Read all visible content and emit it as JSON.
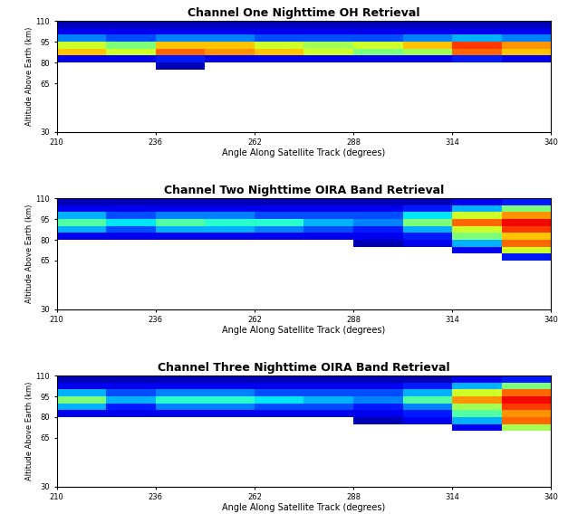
{
  "chart_data": [
    {
      "type": "heatmap",
      "title": "Channel One Nighttime OH Retrieval",
      "x_label": "Angle Along Satellite Track (degrees)",
      "y_label": "Altitude Above Earth (km)",
      "xlim": [
        210,
        340
      ],
      "ylim": [
        30,
        110
      ],
      "xticks": [
        210,
        236,
        262,
        288,
        314,
        340
      ],
      "yticks": [
        30,
        65,
        80,
        95,
        110
      ],
      "x_edges": [
        210,
        223,
        236,
        249,
        262,
        275,
        288,
        301,
        314,
        327,
        340
      ],
      "y_edges": [
        65,
        70,
        75,
        80,
        85,
        90,
        95,
        100,
        105,
        110
      ],
      "clim": [
        0,
        1
      ],
      "cells": [
        [
          null,
          null,
          null,
          null,
          null,
          null,
          null,
          null,
          null,
          null
        ],
        [
          null,
          null,
          null,
          null,
          null,
          null,
          null,
          null,
          null,
          null
        ],
        [
          null,
          null,
          0.05,
          null,
          null,
          null,
          null,
          null,
          null,
          null
        ],
        [
          0.1,
          0.1,
          0.15,
          0.1,
          0.1,
          0.1,
          0.1,
          0.1,
          0.15,
          0.1
        ],
        [
          0.7,
          0.6,
          0.8,
          0.75,
          0.7,
          0.6,
          0.5,
          0.55,
          0.8,
          0.7
        ],
        [
          0.6,
          0.5,
          0.7,
          0.7,
          0.6,
          0.55,
          0.6,
          0.7,
          0.85,
          0.75
        ],
        [
          0.25,
          0.2,
          0.25,
          0.25,
          0.2,
          0.2,
          0.2,
          0.25,
          0.3,
          0.25
        ],
        [
          0.1,
          0.1,
          0.1,
          0.1,
          0.1,
          0.1,
          0.1,
          0.1,
          0.1,
          0.1
        ],
        [
          0.05,
          0.05,
          0.05,
          0.05,
          0.05,
          0.05,
          0.05,
          0.05,
          0.05,
          0.05
        ]
      ]
    },
    {
      "type": "heatmap",
      "title": "Channel Two Nighttime OIRA Band Retrieval",
      "x_label": "Angle Along Satellite Track (degrees)",
      "y_label": "Altitude Above Earth (km)",
      "xlim": [
        210,
        340
      ],
      "ylim": [
        30,
        110
      ],
      "xticks": [
        210,
        236,
        262,
        288,
        314,
        340
      ],
      "yticks": [
        30,
        65,
        80,
        95,
        110
      ],
      "x_edges": [
        210,
        223,
        236,
        249,
        262,
        275,
        288,
        301,
        314,
        327,
        340
      ],
      "y_edges": [
        65,
        70,
        75,
        80,
        85,
        90,
        95,
        100,
        105,
        110
      ],
      "clim": [
        0,
        1
      ],
      "cells": [
        [
          null,
          null,
          null,
          null,
          null,
          null,
          null,
          null,
          null,
          0.15
        ],
        [
          null,
          null,
          null,
          null,
          null,
          null,
          null,
          null,
          0.1,
          0.6
        ],
        [
          null,
          null,
          null,
          null,
          null,
          null,
          0.05,
          0.1,
          0.3,
          0.8
        ],
        [
          0.1,
          0.1,
          0.1,
          0.1,
          0.1,
          0.1,
          0.1,
          0.15,
          0.5,
          0.7
        ],
        [
          0.3,
          0.2,
          0.3,
          0.3,
          0.25,
          0.2,
          0.15,
          0.3,
          0.6,
          0.85
        ],
        [
          0.45,
          0.35,
          0.45,
          0.4,
          0.4,
          0.3,
          0.25,
          0.5,
          0.8,
          0.9
        ],
        [
          0.3,
          0.2,
          0.25,
          0.25,
          0.2,
          0.2,
          0.2,
          0.35,
          0.6,
          0.75
        ],
        [
          0.1,
          0.1,
          0.1,
          0.1,
          0.1,
          0.1,
          0.1,
          0.15,
          0.3,
          0.5
        ],
        [
          0.05,
          0.05,
          0.05,
          0.05,
          0.05,
          0.05,
          0.05,
          0.05,
          0.1,
          0.15
        ]
      ]
    },
    {
      "type": "heatmap",
      "title": "Channel Three Nighttime OIRA Band Retrieval",
      "x_label": "Angle Along Satellite Track (degrees)",
      "y_label": "Altitude Above Earth (km)",
      "xlim": [
        210,
        340
      ],
      "ylim": [
        30,
        110
      ],
      "xticks": [
        210,
        236,
        262,
        288,
        314,
        340
      ],
      "yticks": [
        30,
        65,
        80,
        95,
        110
      ],
      "x_edges": [
        210,
        223,
        236,
        249,
        262,
        275,
        288,
        301,
        314,
        327,
        340
      ],
      "y_edges": [
        65,
        70,
        75,
        80,
        85,
        90,
        95,
        100,
        105,
        110
      ],
      "clim": [
        0,
        1
      ],
      "cells": [
        [
          null,
          null,
          null,
          null,
          null,
          null,
          null,
          null,
          null,
          null
        ],
        [
          null,
          null,
          null,
          null,
          null,
          null,
          null,
          null,
          0.1,
          0.55
        ],
        [
          null,
          null,
          null,
          null,
          null,
          null,
          0.05,
          0.1,
          0.3,
          0.8
        ],
        [
          0.1,
          0.1,
          0.1,
          0.1,
          0.1,
          0.1,
          0.1,
          0.15,
          0.45,
          0.75
        ],
        [
          0.3,
          0.15,
          0.25,
          0.25,
          0.2,
          0.2,
          0.15,
          0.25,
          0.55,
          0.85
        ],
        [
          0.5,
          0.3,
          0.4,
          0.4,
          0.35,
          0.3,
          0.25,
          0.45,
          0.75,
          0.9
        ],
        [
          0.3,
          0.2,
          0.25,
          0.25,
          0.2,
          0.2,
          0.2,
          0.3,
          0.6,
          0.8
        ],
        [
          0.1,
          0.1,
          0.1,
          0.1,
          0.1,
          0.1,
          0.1,
          0.15,
          0.3,
          0.5
        ],
        [
          0.05,
          0.05,
          0.05,
          0.05,
          0.05,
          0.05,
          0.05,
          0.05,
          0.1,
          0.15
        ]
      ]
    }
  ]
}
